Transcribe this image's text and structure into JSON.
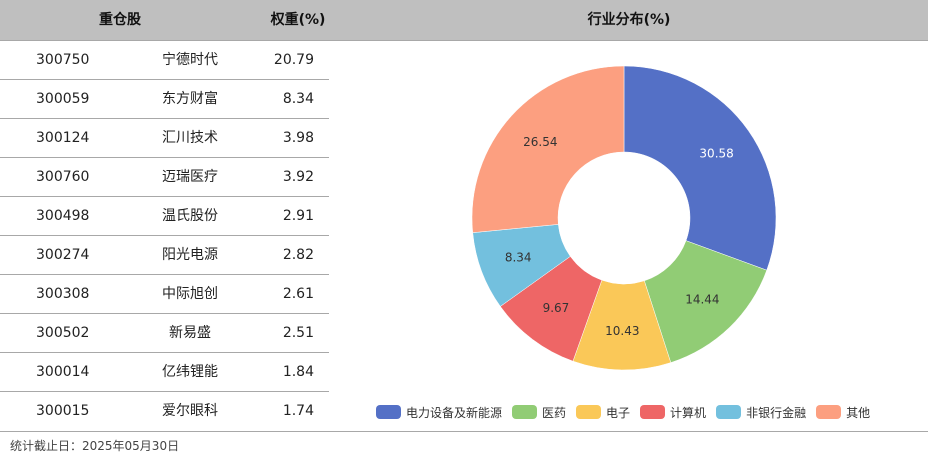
{
  "header": {
    "stock_col": "重仓股",
    "weight_col": "权重(%)",
    "industry_col": "行业分布(%)"
  },
  "holdings": [
    {
      "code": "300750",
      "name": "宁德时代",
      "weight": "20.79"
    },
    {
      "code": "300059",
      "name": "东方财富",
      "weight": "8.34"
    },
    {
      "code": "300124",
      "name": "汇川技术",
      "weight": "3.98"
    },
    {
      "code": "300760",
      "name": "迈瑞医疗",
      "weight": "3.92"
    },
    {
      "code": "300498",
      "name": "温氏股份",
      "weight": "2.91"
    },
    {
      "code": "300274",
      "name": "阳光电源",
      "weight": "2.82"
    },
    {
      "code": "300308",
      "name": "中际旭创",
      "weight": "2.61"
    },
    {
      "code": "300502",
      "name": "新易盛",
      "weight": "2.51"
    },
    {
      "code": "300014",
      "name": "亿纬锂能",
      "weight": "1.84"
    },
    {
      "code": "300015",
      "name": "爱尔眼科",
      "weight": "1.74"
    }
  ],
  "chart_data": {
    "type": "pie",
    "subtype": "donut",
    "title": "行业分布(%)",
    "categories": [
      "电力设备及新能源",
      "医药",
      "电子",
      "计算机",
      "非银行金融",
      "其他"
    ],
    "values": [
      30.58,
      14.44,
      10.43,
      9.67,
      8.34,
      26.54
    ],
    "colors": [
      "#5470c6",
      "#91cc75",
      "#fac858",
      "#ee6666",
      "#73c0de",
      "#fc9f80"
    ],
    "label_colors": [
      "#ffffff",
      "#333333",
      "#333333",
      "#333333",
      "#333333",
      "#333333"
    ],
    "start_angle": "top, clockwise",
    "legend_position": "bottom"
  },
  "footer": {
    "date_text": "统计截止日：2025年05月30日"
  }
}
